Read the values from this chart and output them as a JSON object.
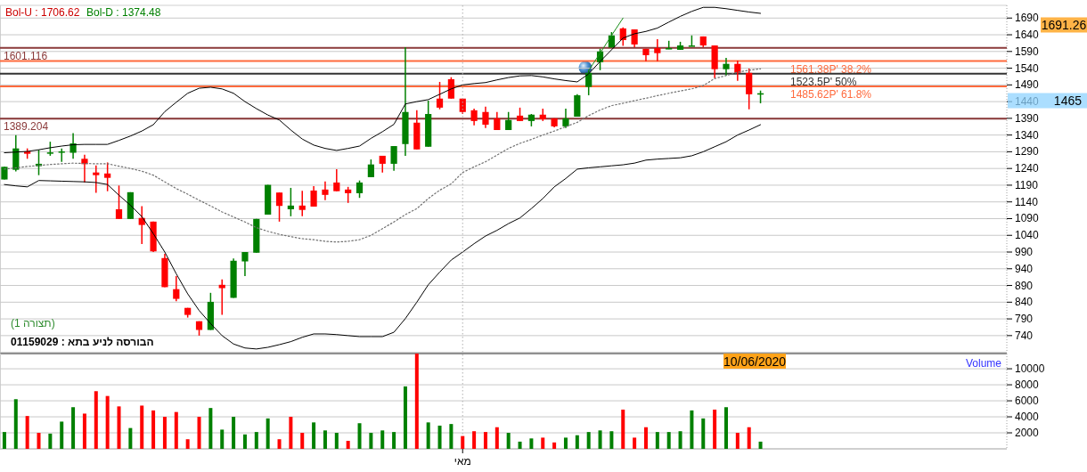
{
  "chart_data": [
    {
      "type": "candlestick",
      "tick_labels": "y",
      "grid": "y",
      "categories": [
        null,
        null,
        null,
        null,
        null,
        null,
        null,
        null,
        null,
        null,
        null,
        null,
        null,
        null,
        null,
        null,
        null,
        null,
        null,
        null,
        null,
        null,
        null,
        null,
        null,
        null,
        null,
        null,
        null,
        null,
        null,
        null,
        null,
        null,
        null,
        null,
        null,
        null,
        null,
        null,
        null,
        null,
        null,
        null,
        null,
        null,
        null,
        null,
        null,
        null,
        null,
        null,
        null,
        null,
        null,
        null,
        null,
        null,
        null,
        null,
        null,
        null,
        null,
        null,
        null,
        null,
        null,
        null,
        null,
        null,
        null,
        null,
        null,
        null,
        null,
        null,
        null,
        null,
        null,
        null,
        null,
        null,
        null,
        null,
        null,
        null,
        null,
        null
      ],
      "ohlc": [
        [
          1207,
          1245,
          1207,
          1245
        ],
        [
          1236,
          1340,
          1231,
          1300
        ],
        [
          1291,
          1300,
          1269,
          1284
        ],
        [
          1247,
          1296,
          1220,
          1254
        ],
        [
          1285,
          1320,
          1278,
          1288
        ],
        [
          1288,
          1300,
          1260,
          1291
        ],
        [
          1287,
          1346,
          1269,
          1315
        ],
        [
          1269,
          1281,
          1198,
          1253
        ],
        [
          1228,
          1249,
          1167,
          1220
        ],
        [
          1225,
          1258,
          1172,
          1212
        ],
        [
          1118,
          1189,
          1089,
          1089
        ],
        [
          1089,
          1169,
          1089,
          1169
        ],
        [
          1092,
          1127,
          1014,
          1071
        ],
        [
          1081,
          1081,
          990,
          992
        ],
        [
          972,
          985,
          885,
          885
        ],
        [
          879,
          918,
          843,
          850
        ],
        [
          823,
          823,
          794,
          802
        ],
        [
          783,
          783,
          740,
          757
        ],
        [
          757,
          868,
          757,
          841
        ],
        [
          892,
          908,
          802,
          882
        ],
        [
          853,
          971,
          853,
          964
        ],
        [
          962,
          990,
          918,
          990
        ],
        [
          988,
          1089,
          988,
          1089
        ],
        [
          1102,
          1191,
          1102,
          1191
        ],
        [
          1168,
          1168,
          1081,
          1128
        ],
        [
          1118,
          1182,
          1097,
          1129
        ],
        [
          1129,
          1173,
          1097,
          1116
        ],
        [
          1174,
          1187,
          1126,
          1126
        ],
        [
          1177,
          1201,
          1145,
          1161
        ],
        [
          1198,
          1238,
          1172,
          1172
        ],
        [
          1177,
          1185,
          1137,
          1166
        ],
        [
          1166,
          1204,
          1152,
          1198
        ],
        [
          1214,
          1267,
          1214,
          1252
        ],
        [
          1278,
          1278,
          1228,
          1254
        ],
        [
          1254,
          1307,
          1233,
          1307
        ],
        [
          1313,
          1603,
          1278,
          1409
        ],
        [
          1377,
          1414,
          1297,
          1297
        ],
        [
          1305,
          1443,
          1305,
          1403
        ],
        [
          1449,
          1499,
          1417,
          1422
        ],
        [
          1507,
          1513,
          1449,
          1449
        ],
        [
          1449,
          1449,
          1403,
          1409
        ],
        [
          1414,
          1419,
          1369,
          1382
        ],
        [
          1409,
          1425,
          1361,
          1371
        ],
        [
          1390,
          1409,
          1355,
          1355
        ],
        [
          1355,
          1409,
          1355,
          1385
        ],
        [
          1398,
          1422,
          1382,
          1382
        ],
        [
          1382,
          1403,
          1366,
          1401
        ],
        [
          1401,
          1419,
          1382,
          1387
        ],
        [
          1390,
          1390,
          1363,
          1366
        ],
        [
          1366,
          1419,
          1361,
          1390
        ],
        [
          1395,
          1462,
          1395,
          1459
        ],
        [
          1484,
          1534,
          1459,
          1526
        ],
        [
          1558,
          1598,
          1534,
          1590
        ],
        [
          1602,
          1648,
          1602,
          1638
        ],
        [
          1659,
          1662,
          1607,
          1624
        ],
        [
          1656,
          1656,
          1603,
          1611
        ],
        [
          1598,
          1598,
          1561,
          1579
        ],
        [
          1600,
          1627,
          1561,
          1585
        ],
        [
          1597,
          1622,
          1597,
          1600
        ],
        [
          1595,
          1619,
          1595,
          1608
        ],
        [
          1605,
          1638,
          1605,
          1608
        ],
        [
          1635,
          1635,
          1603,
          1608
        ],
        [
          1608,
          1608,
          1510,
          1537
        ],
        [
          1537,
          1571,
          1518,
          1553
        ],
        [
          1553,
          1563,
          1502,
          1526
        ],
        [
          1526,
          1539,
          1417,
          1462
        ],
        [
          1462,
          1473,
          1435,
          1465
        ],
        null,
        null,
        null,
        null,
        null,
        null,
        null,
        null,
        null,
        null,
        null,
        null,
        null,
        null,
        null,
        null,
        null,
        null,
        null,
        null,
        null
      ],
      "colors": [
        "#008000",
        "#008000",
        "#ff0000",
        "#008000",
        "#008000",
        "#008000",
        "#008000",
        "#ff0000",
        "#ff0000",
        "#ff0000",
        "#ff0000",
        "#008000",
        "#ff0000",
        "#ff0000",
        "#ff0000",
        "#ff0000",
        "#ff0000",
        "#ff0000",
        "#008000",
        "#ff0000",
        "#008000",
        "#008000",
        "#008000",
        "#008000",
        "#ff0000",
        "#008000",
        "#ff0000",
        "#ff0000",
        "#ff0000",
        "#ff0000",
        "#ff0000",
        "#008000",
        "#008000",
        "#ff0000",
        "#008000",
        "#008000",
        "#ff0000",
        "#008000",
        "#ff0000",
        "#ff0000",
        "#ff0000",
        "#ff0000",
        "#ff0000",
        "#ff0000",
        "#008000",
        "#ff0000",
        "#008000",
        "#ff0000",
        "#ff0000",
        "#008000",
        "#008000",
        "#008000",
        "#008000",
        "#008000",
        "#ff0000",
        "#ff0000",
        "#ff0000",
        "#ff0000",
        "#008000",
        "#008000",
        "#008000",
        "#ff0000",
        "#ff0000",
        "#008000",
        "#ff0000",
        "#ff0000",
        "#008000",
        null,
        null,
        null,
        null,
        null,
        null,
        null,
        null,
        null,
        null,
        null,
        null,
        null,
        null,
        null,
        null,
        null,
        null,
        null,
        null,
        null
      ],
      "series": [
        {
          "type": "line",
          "color": "#000000",
          "values": [
            1287,
            1289,
            1291,
            1296,
            1302,
            1307,
            1311,
            1312,
            1312,
            1312,
            1324,
            1337,
            1352,
            1371,
            1410,
            1438,
            1465,
            1480,
            1483,
            1478,
            1465,
            1440,
            1419,
            1400,
            1385,
            1355,
            1328,
            1310,
            1300,
            1294,
            1300,
            1307,
            1330,
            1350,
            1372,
            1433,
            1440,
            1446,
            1462,
            1478,
            1490,
            1494,
            1497,
            1505,
            1512,
            1517,
            1518,
            1514,
            1508,
            1503,
            1499,
            1523,
            1560,
            1595,
            1630,
            1643,
            1650,
            1660,
            1678,
            1695,
            1710,
            1722,
            1722,
            1718,
            1713,
            1708,
            1704,
            null,
            null,
            null,
            null,
            null,
            null,
            null,
            null,
            null,
            null,
            null,
            null,
            null,
            null,
            null,
            null,
            null,
            null,
            null,
            null,
            null
          ]
        },
        {
          "type": "line",
          "color": "#707070",
          "line_style": "dotted",
          "values": [
            1238,
            1242,
            1246,
            1249,
            1252,
            1254,
            1256,
            1255,
            1254,
            1254,
            1247,
            1240,
            1232,
            1220,
            1200,
            1180,
            1163,
            1145,
            1128,
            1110,
            1095,
            1080,
            1063,
            1052,
            1043,
            1036,
            1030,
            1027,
            1022,
            1020,
            1022,
            1027,
            1040,
            1060,
            1080,
            1102,
            1120,
            1150,
            1175,
            1194,
            1228,
            1245,
            1260,
            1280,
            1300,
            1315,
            1327,
            1340,
            1352,
            1365,
            1378,
            1398,
            1415,
            1428,
            1435,
            1443,
            1450,
            1458,
            1465,
            1472,
            1478,
            1488,
            1509,
            1518,
            1528,
            1534,
            1538,
            null,
            null,
            null,
            null,
            null,
            null,
            null,
            null,
            null,
            null,
            null,
            null,
            null,
            null,
            null,
            null,
            null,
            null,
            null,
            null,
            null
          ]
        },
        {
          "type": "line",
          "color": "#1a8f1a",
          "values": [
            null,
            null,
            null,
            null,
            null,
            null,
            null,
            null,
            null,
            null,
            null,
            null,
            null,
            null,
            null,
            null,
            null,
            null,
            null,
            null,
            null,
            null,
            null,
            null,
            null,
            null,
            null,
            null,
            null,
            null,
            null,
            null,
            null,
            null,
            null,
            null,
            null,
            null,
            null,
            null,
            null,
            null,
            null,
            null,
            null,
            null,
            null,
            null,
            null,
            null,
            null,
            1533,
            1585,
            1638,
            1690,
            null,
            null,
            null,
            null,
            null,
            null,
            null,
            null,
            null,
            null,
            null,
            null,
            null,
            null,
            null,
            null,
            null,
            null,
            null,
            null,
            null,
            null,
            null,
            null,
            null,
            null,
            null,
            null,
            null,
            null,
            null,
            null,
            null
          ]
        },
        {
          "type": "line",
          "color": "#000000",
          "values": [
            1192,
            1188,
            1185,
            1204,
            1203,
            1202,
            1201,
            1200,
            1198,
            1192,
            1160,
            1130,
            1096,
            1045,
            990,
            925,
            865,
            815,
            776,
            740,
            715,
            703,
            700,
            705,
            713,
            722,
            735,
            745,
            745,
            743,
            740,
            737,
            737,
            737,
            750,
            791,
            840,
            892,
            930,
            966,
            990,
            1015,
            1038,
            1055,
            1075,
            1092,
            1120,
            1150,
            1185,
            1210,
            1238,
            1242,
            1245,
            1248,
            1251,
            1256,
            1265,
            1268,
            1270,
            1272,
            1278,
            1290,
            1305,
            1320,
            1340,
            1355,
            1371,
            null,
            null,
            null,
            null,
            null,
            null,
            null,
            null,
            null,
            null,
            null,
            null,
            null,
            null,
            null,
            null,
            null,
            null,
            null,
            null,
            null
          ]
        }
      ],
      "ylim": [
        689,
        1728
      ],
      "yticks": [
        740,
        790,
        840,
        890,
        940,
        990,
        1040,
        1090,
        1140,
        1190,
        1240,
        1290,
        1340,
        1390,
        1440,
        1490,
        1540,
        1590,
        1640,
        1690
      ],
      "ref_lines": [
        {
          "axis": "y",
          "value": 1601.116,
          "label": "1601.116",
          "color": "#8b3a3a"
        },
        {
          "axis": "y",
          "value": 1389.204,
          "label": "1389.204",
          "color": "#8b3a3a"
        },
        {
          "axis": "y",
          "value": 1561.38,
          "label": "1561.38P' 38.2%",
          "color": "#ff6a3d"
        },
        {
          "axis": "y",
          "value": 1523.5,
          "label": "1523.5P' 50%",
          "color": "#333333"
        },
        {
          "axis": "y",
          "value": 1485.62,
          "label": "1485.62P' 61.8%",
          "color": "#ff6a3d"
        }
      ],
      "annotations": [
        "Bol-U : 1706.62",
        "Bol-D : 1374.48",
        "(תצורה 1)",
        "01159029 : הבורסה לניע בתא",
        "1691.26",
        "1465"
      ]
    },
    {
      "type": "bar",
      "grid": "y",
      "categories": [
        null,
        null,
        null,
        null,
        null,
        null,
        null,
        null,
        null,
        null,
        null,
        null,
        null,
        null,
        null,
        null,
        null,
        null,
        null,
        null,
        null,
        null,
        null,
        null,
        null,
        null,
        null,
        null,
        null,
        null,
        null,
        null,
        null,
        null,
        null,
        null,
        null,
        null,
        null,
        null,
        "מאי",
        null,
        null,
        null,
        null,
        null,
        null,
        null,
        null,
        null,
        null,
        null,
        null,
        null,
        null,
        null,
        null,
        null,
        null,
        null,
        null,
        null,
        null,
        null,
        null,
        null,
        null,
        null,
        null,
        null,
        null,
        null,
        null,
        null,
        null,
        null,
        null,
        null,
        null,
        null,
        null,
        null,
        null,
        null,
        null,
        null,
        null,
        null
      ],
      "values": [
        2100,
        6200,
        4100,
        2000,
        1900,
        3400,
        5200,
        4400,
        7200,
        6600,
        5300,
        2600,
        5400,
        4800,
        4000,
        4600,
        1200,
        4000,
        5100,
        2400,
        4000,
        1800,
        2100,
        3800,
        1200,
        4000,
        2000,
        3300,
        2300,
        2000,
        1000,
        3200,
        2000,
        2300,
        2100,
        7800,
        11900,
        3300,
        2900,
        3100,
        1600,
        2200,
        2100,
        2700,
        2000,
        900,
        1300,
        1400,
        800,
        1400,
        1700,
        2100,
        2300,
        2200,
        4900,
        1400,
        2700,
        2100,
        2100,
        2200,
        4800,
        3800,
        4900,
        5200,
        2000,
        2700,
        900,
        null,
        null,
        null,
        null,
        null,
        null,
        null,
        null,
        null,
        null,
        null,
        null,
        null,
        null,
        null,
        null,
        null,
        null,
        null,
        null,
        null
      ],
      "colors": [
        "#008000",
        "#008000",
        "#ff0000",
        "#ff0000",
        "#008000",
        "#008000",
        "#008000",
        "#ff0000",
        "#ff0000",
        "#ff0000",
        "#ff0000",
        "#008000",
        "#ff0000",
        "#ff0000",
        "#ff0000",
        "#ff0000",
        "#ff0000",
        "#ff0000",
        "#008000",
        "#008000",
        "#008000",
        "#008000",
        "#008000",
        "#008000",
        "#ff0000",
        "#ff0000",
        "#ff0000",
        "#008000",
        "#008000",
        "#008000",
        "#ff0000",
        "#008000",
        "#008000",
        "#008000",
        "#008000",
        "#008000",
        "#ff0000",
        "#008000",
        "#008000",
        "#008000",
        "#ff0000",
        "#ff0000",
        "#ff0000",
        "#ff0000",
        "#008000",
        "#008000",
        "#008000",
        "#ff0000",
        "#ff0000",
        "#008000",
        "#008000",
        "#008000",
        "#008000",
        "#008000",
        "#ff0000",
        "#ff0000",
        "#ff0000",
        "#008000",
        "#008000",
        "#008000",
        "#008000",
        "#008000",
        "#ff0000",
        "#008000",
        "#ff0000",
        "#ff0000",
        "#008000",
        null,
        null,
        null,
        null,
        null,
        null,
        null,
        null,
        null,
        null,
        null,
        null,
        null,
        null,
        null,
        null,
        null,
        null,
        null,
        null,
        null
      ],
      "ref_lines": [
        {
          "axis": "x",
          "value": "מאי",
          "color": "#b0b0b0",
          "line_style": "dotted"
        }
      ],
      "ylim": [
        0,
        11900
      ],
      "yticks": [
        2000,
        4000,
        6000,
        8000,
        10000
      ],
      "annotations": [
        "Volume",
        "10/06/2020"
      ]
    }
  ]
}
